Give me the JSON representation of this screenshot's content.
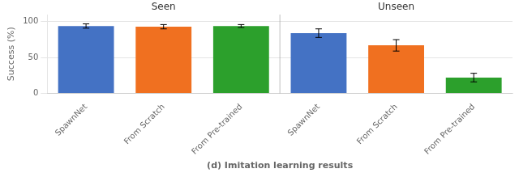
{
  "chart_data": {
    "type": "bar",
    "categories": [
      "SpawnNet",
      "From Scratch",
      "From Pre-trained",
      "SpawnNet",
      "From Scratch",
      "From Pre-trained"
    ],
    "values": [
      94,
      93,
      94,
      84,
      67,
      22
    ],
    "errors": [
      3,
      3,
      2,
      6,
      8,
      6
    ],
    "colors": [
      "#4472c4",
      "#f07020",
      "#2ca02c",
      "#4472c4",
      "#f07020",
      "#2ca02c"
    ],
    "annotations": [
      "Seen",
      "Unseen"
    ],
    "xlabel": "(d) Imitation learning results",
    "ylabel": "Success (%)",
    "ylim": [
      0,
      110
    ],
    "yticks": [
      0,
      50,
      100
    ],
    "grid": true
  }
}
